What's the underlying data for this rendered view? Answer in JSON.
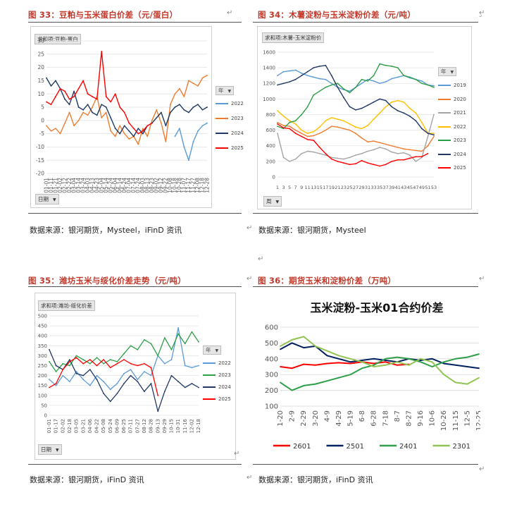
{
  "charts": {
    "c33": {
      "fig_title": "图 33：豆粕与玉米蛋白价差（元/蛋白）",
      "source": "数据来源：银河期货，Mysteel，iFinD 资讯",
      "pivot_label": "求和项:豆粕-蛋白",
      "axis_button": "日期",
      "legend_title": "年"
    },
    "c34": {
      "fig_title": "图 34：木薯淀粉与玉米淀粉价差（元/吨）",
      "source": "数据来源：银河期货，Mysteel",
      "pivot_label": "求和项:木薯-玉米淀粉价",
      "axis_button": "周",
      "legend_title": "年"
    },
    "c35": {
      "fig_title": "图 35：潍坊玉米与绥化价差走势（元/吨）",
      "source": "数据来源：银河期货，iFinD 资讯",
      "pivot_label": "求和项:潍坊-绥化价差",
      "axis_button": "日期",
      "legend_title": "年"
    },
    "c36": {
      "fig_title": "图 36：期货玉米和淀粉价差（万吨）",
      "source": "数据来源：银河期货，iFinD 资讯"
    }
  },
  "chart_data": [
    {
      "id": "c33",
      "type": "line",
      "title": "",
      "ylim": [
        -20,
        30
      ],
      "yticks": [
        30,
        25,
        20,
        15,
        10,
        5,
        0,
        -5,
        -10,
        -15,
        -20
      ],
      "xtick_labels": [
        "01-01",
        "01-11",
        "01-21",
        "02-02",
        "02-12",
        "02-22",
        "03-04",
        "03-14",
        "03-24",
        "04-03",
        "04-13",
        "04-23",
        "05-04",
        "05-14",
        "05-24",
        "06-04",
        "06-14",
        "06-24",
        "07-04",
        "07-14",
        "07-24",
        "08-03",
        "08-13",
        "08-23",
        "09-02",
        "09-12",
        "09-22",
        "10-08",
        "10-18",
        "10-28",
        "11-07",
        "11-17",
        "11-27",
        "12-08",
        "12-18",
        "12-28"
      ],
      "series": [
        {
          "name": "2022",
          "color": "#5b9bd5",
          "values": [
            null,
            null,
            null,
            null,
            null,
            null,
            null,
            null,
            null,
            null,
            null,
            null,
            null,
            null,
            null,
            null,
            null,
            null,
            null,
            null,
            null,
            null,
            null,
            null,
            null,
            null,
            null,
            null,
            -6,
            -3,
            -10,
            -15,
            -8,
            -4,
            -2,
            -1
          ]
        },
        {
          "name": "2023",
          "color": "#ed7d31",
          "values": [
            -2,
            -4,
            -3,
            -5,
            -1,
            3,
            -2,
            0,
            3,
            2,
            5,
            9,
            1,
            3,
            -4,
            -6,
            -2,
            -5,
            -7,
            -6,
            -9,
            -3,
            -6,
            0,
            4,
            -1,
            -8,
            6,
            10,
            12,
            9,
            15,
            14,
            13,
            16,
            17
          ]
        },
        {
          "name": "2024",
          "color": "#203864",
          "values": [
            16,
            13,
            15,
            12,
            8,
            6,
            11,
            5,
            4,
            6,
            3,
            2,
            6,
            5,
            1,
            -3,
            -5,
            -2,
            -4,
            -6,
            -3,
            -5,
            -2,
            -1,
            1,
            3,
            -2,
            3,
            5,
            6,
            4,
            3,
            5,
            6,
            4,
            5
          ]
        },
        {
          "name": "2025",
          "color": "#ff0000",
          "values": [
            7,
            6,
            9,
            12,
            11,
            8,
            9,
            12,
            15,
            10,
            9,
            8,
            26,
            9,
            7,
            10,
            5,
            3,
            -1,
            -3,
            -5,
            -4,
            -2,
            -1,
            null,
            null,
            null,
            null,
            null,
            null,
            null,
            null,
            null,
            null,
            null,
            null
          ]
        }
      ]
    },
    {
      "id": "c34",
      "type": "line",
      "title": "",
      "ylim": [
        0,
        1600
      ],
      "yticks": [
        1600,
        1400,
        1200,
        1000,
        800,
        600,
        400,
        200,
        0
      ],
      "xtick_labels": [
        "1",
        "3",
        "5",
        "7",
        "9",
        "11",
        "13",
        "15",
        "17",
        "19",
        "21",
        "23",
        "25",
        "27",
        "29",
        "31",
        "33",
        "35",
        "37",
        "39",
        "41",
        "43",
        "45",
        "47",
        "49",
        "51",
        "53"
      ],
      "series": [
        {
          "name": "2019",
          "color": "#5b9bd5",
          "values": [
            1300,
            1350,
            1360,
            1370,
            1330,
            1300,
            1280,
            1260,
            1250,
            1200,
            1150,
            1120,
            1100,
            1150,
            1200,
            1250,
            1230,
            1200,
            1220,
            1260,
            1280,
            1300,
            1270,
            1250,
            1230,
            1180,
            1170
          ]
        },
        {
          "name": "2020",
          "color": "#ed7d31",
          "values": [
            700,
            660,
            650,
            600,
            560,
            520,
            530,
            560,
            600,
            650,
            640,
            620,
            600,
            560,
            500,
            450,
            460,
            440,
            420,
            400,
            380,
            360,
            350,
            340,
            330,
            400,
            520
          ]
        },
        {
          "name": "2021",
          "color": "#a5a5a5",
          "values": [
            560,
            250,
            200,
            230,
            300,
            330,
            320,
            300,
            280,
            250,
            240,
            230,
            250,
            280,
            300,
            330,
            350,
            380,
            360,
            320,
            300,
            310,
            280,
            200,
            250,
            520,
            800
          ]
        },
        {
          "name": "2022",
          "color": "#ffc000",
          "values": [
            850,
            780,
            720,
            680,
            600,
            560,
            580,
            640,
            720,
            760,
            740,
            720,
            680,
            640,
            620,
            660,
            740,
            820,
            900,
            960,
            980,
            960,
            880,
            820,
            700,
            560,
            560
          ]
        },
        {
          "name": "2023",
          "color": "#2e9e48",
          "values": [
            650,
            620,
            700,
            720,
            800,
            900,
            1050,
            1100,
            1150,
            1180,
            1200,
            1130,
            1080,
            1150,
            1250,
            1230,
            1300,
            1450,
            1430,
            1420,
            1400,
            1300,
            1280,
            1250,
            1200,
            1180,
            1150
          ]
        },
        {
          "name": "2024",
          "color": "#203864",
          "values": [
            1180,
            1200,
            1220,
            1250,
            1300,
            1350,
            1400,
            1420,
            1430,
            1300,
            1150,
            1020,
            900,
            860,
            880,
            920,
            960,
            1000,
            980,
            900,
            850,
            820,
            780,
            720,
            620,
            560,
            540
          ]
        },
        {
          "name": "2025",
          "color": "#ff0000",
          "values": [
            680,
            630,
            620,
            560,
            520,
            480,
            470,
            380,
            300,
            230,
            200,
            180,
            160,
            170,
            210,
            180,
            160,
            140,
            160,
            200,
            220,
            220,
            240,
            260,
            260,
            300,
            null
          ]
        }
      ]
    },
    {
      "id": "c35",
      "type": "line",
      "title": "",
      "ylim": [
        0,
        500
      ],
      "yticks": [
        500,
        450,
        400,
        350,
        300,
        250,
        200,
        150,
        100,
        50,
        0
      ],
      "xtick_labels": [
        "01-01",
        "01-17",
        "02-02",
        "02-18",
        "03-05",
        "03-21",
        "04-06",
        "04-22",
        "05-08",
        "05-24",
        "06-09",
        "06-25",
        "07-11",
        "07-27",
        "08-12",
        "08-28",
        "09-13",
        "09-29",
        "10-15",
        "10-31",
        "11-16",
        "12-02",
        "12-18"
      ],
      "series": [
        {
          "name": "2022",
          "color": "#5b9bd5",
          "values": [
            180,
            150,
            200,
            170,
            220,
            180,
            150,
            200,
            170,
            130,
            160,
            210,
            230,
            180,
            220,
            200,
            300,
            260,
            280,
            440,
            250,
            240,
            250
          ]
        },
        {
          "name": "2023",
          "color": "#2e9e48",
          "values": [
            270,
            220,
            260,
            250,
            300,
            280,
            260,
            290,
            260,
            280,
            270,
            310,
            350,
            330,
            380,
            360,
            300,
            390,
            330,
            410,
            360,
            420,
            370
          ]
        },
        {
          "name": "2024",
          "color": "#203864",
          "values": [
            330,
            250,
            230,
            280,
            210,
            200,
            230,
            180,
            110,
            70,
            110,
            160,
            200,
            170,
            120,
            160,
            20,
            120,
            200,
            170,
            140,
            160,
            140
          ]
        },
        {
          "name": "2025",
          "color": "#ff0000",
          "values": [
            140,
            160,
            230,
            270,
            290,
            260,
            280,
            250,
            280,
            240,
            260,
            280,
            260,
            250,
            260,
            240,
            100,
            null,
            null,
            null,
            null,
            null,
            null
          ]
        }
      ]
    },
    {
      "id": "c36",
      "type": "line",
      "title": "玉米淀粉-玉米01合约价差",
      "ylim": [
        100,
        600
      ],
      "yticks": [
        600,
        500,
        400,
        300,
        200,
        100
      ],
      "xtick_labels": [
        "1-20",
        "2-9",
        "2-29",
        "3-20",
        "4-9",
        "4-29",
        "5-19",
        "6-8",
        "6-28",
        "7-18",
        "8-7",
        "8-27",
        "9-16",
        "10-6",
        "10-26",
        "11-15",
        "12-5",
        "12-25"
      ],
      "series": [
        {
          "name": "2601",
          "color": "#ff0000",
          "values": [
            350,
            340,
            365,
            360,
            370,
            375,
            370,
            380,
            370,
            380,
            360,
            365,
            null,
            null,
            null,
            null,
            null,
            null
          ]
        },
        {
          "name": "2501",
          "color": "#002060",
          "values": [
            460,
            500,
            470,
            480,
            420,
            400,
            380,
            390,
            400,
            390,
            380,
            400,
            390,
            400,
            370,
            360,
            350,
            340
          ]
        },
        {
          "name": "2401",
          "color": "#2e9e48",
          "values": [
            250,
            200,
            230,
            240,
            260,
            280,
            300,
            340,
            360,
            400,
            410,
            400,
            380,
            350,
            380,
            400,
            410,
            430
          ]
        },
        {
          "name": "2301",
          "color": "#92c353",
          "values": [
            480,
            520,
            540,
            480,
            450,
            420,
            400,
            380,
            350,
            360,
            380,
            360,
            400,
            380,
            300,
            250,
            240,
            280
          ]
        }
      ]
    }
  ]
}
